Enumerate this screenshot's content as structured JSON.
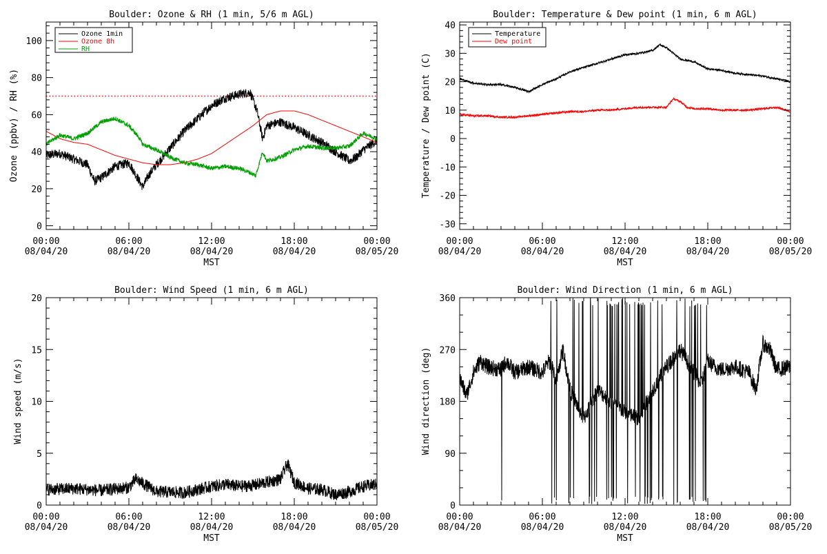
{
  "chart_data": [
    {
      "type": "line",
      "title": "Boulder: Ozone & RH (1 min, 5/6 m AGL)",
      "xlabel": "MST",
      "ylabel": "Ozone (ppbv) / RH (%)",
      "xlim": [
        0,
        24
      ],
      "ylim": [
        -2,
        110
      ],
      "yticks": [
        0,
        20,
        40,
        60,
        80,
        100
      ],
      "xticks": [
        0,
        6,
        12,
        18,
        24
      ],
      "xtick_labels": [
        [
          "00:00",
          "08/04/20"
        ],
        [
          "06:00",
          "08/04/20"
        ],
        [
          "12:00",
          "08/04/20"
        ],
        [
          "18:00",
          "08/04/20"
        ],
        [
          "00:00",
          "08/05/20"
        ]
      ],
      "legend_position": "top-left",
      "reference_line": {
        "y": 70,
        "color": "#ff0000",
        "style": "dotted"
      },
      "series": [
        {
          "name": "Ozone 1min",
          "color": "#000000",
          "noise": 2.5,
          "x": [
            0,
            1,
            2,
            3,
            3.5,
            4,
            5,
            6,
            7,
            7.5,
            8,
            9,
            10,
            11,
            12,
            13,
            14,
            14.8,
            15.3,
            15.7,
            16,
            17,
            18,
            19,
            20,
            21,
            22,
            22.5,
            23,
            24
          ],
          "y": [
            38,
            39,
            36,
            33,
            24,
            26,
            32,
            34,
            21,
            28,
            33,
            42,
            51,
            58,
            65,
            69,
            71,
            72,
            62,
            47,
            54,
            56,
            53,
            49,
            45,
            40,
            35,
            37,
            41,
            46
          ]
        },
        {
          "name": "Ozone 8h",
          "color": "#ff0000",
          "noise": 0,
          "x": [
            0,
            1,
            2,
            3,
            4,
            5,
            6,
            7,
            8,
            9,
            10,
            11,
            12,
            13,
            14,
            15,
            16,
            17,
            18,
            19,
            20,
            21,
            22,
            23,
            24
          ],
          "y": [
            51,
            47,
            45,
            44,
            41,
            38,
            36,
            34,
            33,
            33,
            34,
            36,
            39,
            44,
            49,
            54,
            60,
            62,
            62,
            60,
            57,
            54,
            51,
            48,
            45
          ]
        },
        {
          "name": "RH",
          "color": "#00a000",
          "noise": 1.2,
          "x": [
            0,
            1,
            2,
            3,
            3.5,
            4,
            5,
            6,
            6.7,
            7,
            8,
            9,
            10,
            11,
            12,
            13,
            14,
            14.7,
            15.2,
            15.7,
            16,
            17,
            18,
            19,
            20,
            21,
            22,
            23,
            24
          ],
          "y": [
            44,
            49,
            47,
            50,
            53,
            56,
            58,
            54,
            48,
            44,
            41,
            37,
            34,
            33,
            31,
            32,
            31,
            29,
            27,
            40,
            35,
            37,
            41,
            43,
            42,
            42,
            43,
            50,
            47
          ]
        }
      ]
    },
    {
      "type": "line",
      "title": "Boulder: Temperature & Dew point (1 min, 6 m AGL)",
      "xlabel": "MST",
      "ylabel": "Temperature / Dew point (C)",
      "xlim": [
        0,
        24
      ],
      "ylim": [
        -32,
        41
      ],
      "yticks": [
        -30,
        -20,
        -10,
        0,
        10,
        20,
        30,
        40
      ],
      "xticks": [
        0,
        6,
        12,
        18,
        24
      ],
      "xtick_labels": [
        [
          "00:00",
          "08/04/20"
        ],
        [
          "06:00",
          "08/04/20"
        ],
        [
          "12:00",
          "08/04/20"
        ],
        [
          "18:00",
          "08/04/20"
        ],
        [
          "00:00",
          "08/05/20"
        ]
      ],
      "legend_position": "top-left",
      "series": [
        {
          "name": "Temperature",
          "color": "#000000",
          "noise": 0.35,
          "x": [
            0,
            1,
            2,
            3,
            4,
            5,
            6,
            7,
            8,
            9,
            10,
            11,
            12,
            13,
            14,
            14.5,
            15,
            16,
            17,
            18,
            19,
            20,
            21,
            22,
            23,
            24
          ],
          "y": [
            21,
            19.5,
            19,
            19,
            18,
            16.5,
            19,
            21,
            23.5,
            25,
            26.5,
            28,
            29.5,
            30,
            31,
            33,
            32,
            28,
            27,
            24.5,
            24,
            23,
            22.5,
            22,
            21,
            20
          ]
        },
        {
          "name": "Dew point",
          "color": "#ff0000",
          "noise": 0.35,
          "x": [
            0,
            1,
            2,
            3,
            4,
            5,
            6,
            7,
            8,
            9,
            10,
            11,
            12,
            13,
            14,
            15,
            15.5,
            16,
            16.5,
            17,
            18,
            19,
            20,
            21,
            22,
            23,
            24
          ],
          "y": [
            8.5,
            8,
            8,
            7.5,
            7.5,
            8,
            8.5,
            9,
            9.5,
            9.5,
            10,
            10,
            10.5,
            11,
            11,
            11,
            14,
            13,
            11,
            10.5,
            10.5,
            10,
            10,
            10,
            10.5,
            11,
            9.5
          ]
        }
      ]
    },
    {
      "type": "line",
      "title": "Boulder: Wind Speed (1 min, 6 m AGL)",
      "xlabel": "MST",
      "ylabel": "Wind speed (m/s)",
      "xlim": [
        0,
        24
      ],
      "ylim": [
        0,
        20
      ],
      "yticks": [
        0,
        5,
        10,
        15,
        20
      ],
      "xticks": [
        0,
        6,
        12,
        18,
        24
      ],
      "xtick_labels": [
        [
          "00:00",
          "08/04/20"
        ],
        [
          "06:00",
          "08/04/20"
        ],
        [
          "12:00",
          "08/04/20"
        ],
        [
          "18:00",
          "08/04/20"
        ],
        [
          "00:00",
          "08/05/20"
        ]
      ],
      "series": [
        {
          "name": "",
          "color": "#000000",
          "noise": 0.6,
          "x": [
            0,
            2,
            4,
            6,
            6.5,
            8,
            10,
            12,
            13,
            14,
            15,
            16,
            17,
            17.5,
            18,
            19,
            20,
            21,
            22,
            23,
            24
          ],
          "y": [
            1.5,
            1.6,
            1.4,
            1.7,
            2.5,
            1.3,
            1.2,
            1.8,
            2,
            1.8,
            1.9,
            2.2,
            2.5,
            4,
            2.2,
            1.6,
            1.5,
            1,
            1.3,
            1.8,
            2
          ]
        }
      ]
    },
    {
      "type": "line",
      "title": "Boulder: Wind Direction (1 min, 6 m AGL)",
      "xlabel": "MST",
      "ylabel": "Wind direction (deg)",
      "xlim": [
        0,
        24
      ],
      "ylim": [
        0,
        360
      ],
      "yticks": [
        0,
        90,
        180,
        270,
        360
      ],
      "xticks": [
        0,
        6,
        12,
        18,
        24
      ],
      "xtick_labels": [
        [
          "00:00",
          "08/04/20"
        ],
        [
          "06:00",
          "08/04/20"
        ],
        [
          "12:00",
          "08/04/20"
        ],
        [
          "18:00",
          "08/04/20"
        ],
        [
          "00:00",
          "08/05/20"
        ]
      ],
      "series": [
        {
          "name": "",
          "color": "#000000",
          "noise": 14,
          "x": [
            0,
            0.5,
            1,
            1.5,
            2,
            3,
            3.4,
            4,
            5,
            6,
            6.5,
            7,
            7.5,
            8,
            9,
            10,
            11,
            12,
            13,
            14,
            15,
            16,
            17,
            17.5,
            18,
            18.5,
            19,
            20,
            21,
            21.5,
            22,
            22.5,
            23,
            24
          ],
          "y": [
            220,
            190,
            230,
            250,
            240,
            235,
            250,
            230,
            240,
            230,
            250,
            220,
            270,
            200,
            150,
            200,
            180,
            160,
            150,
            200,
            240,
            270,
            230,
            210,
            250,
            240,
            235,
            240,
            230,
            200,
            280,
            270,
            235,
            240
          ]
        }
      ]
    }
  ]
}
